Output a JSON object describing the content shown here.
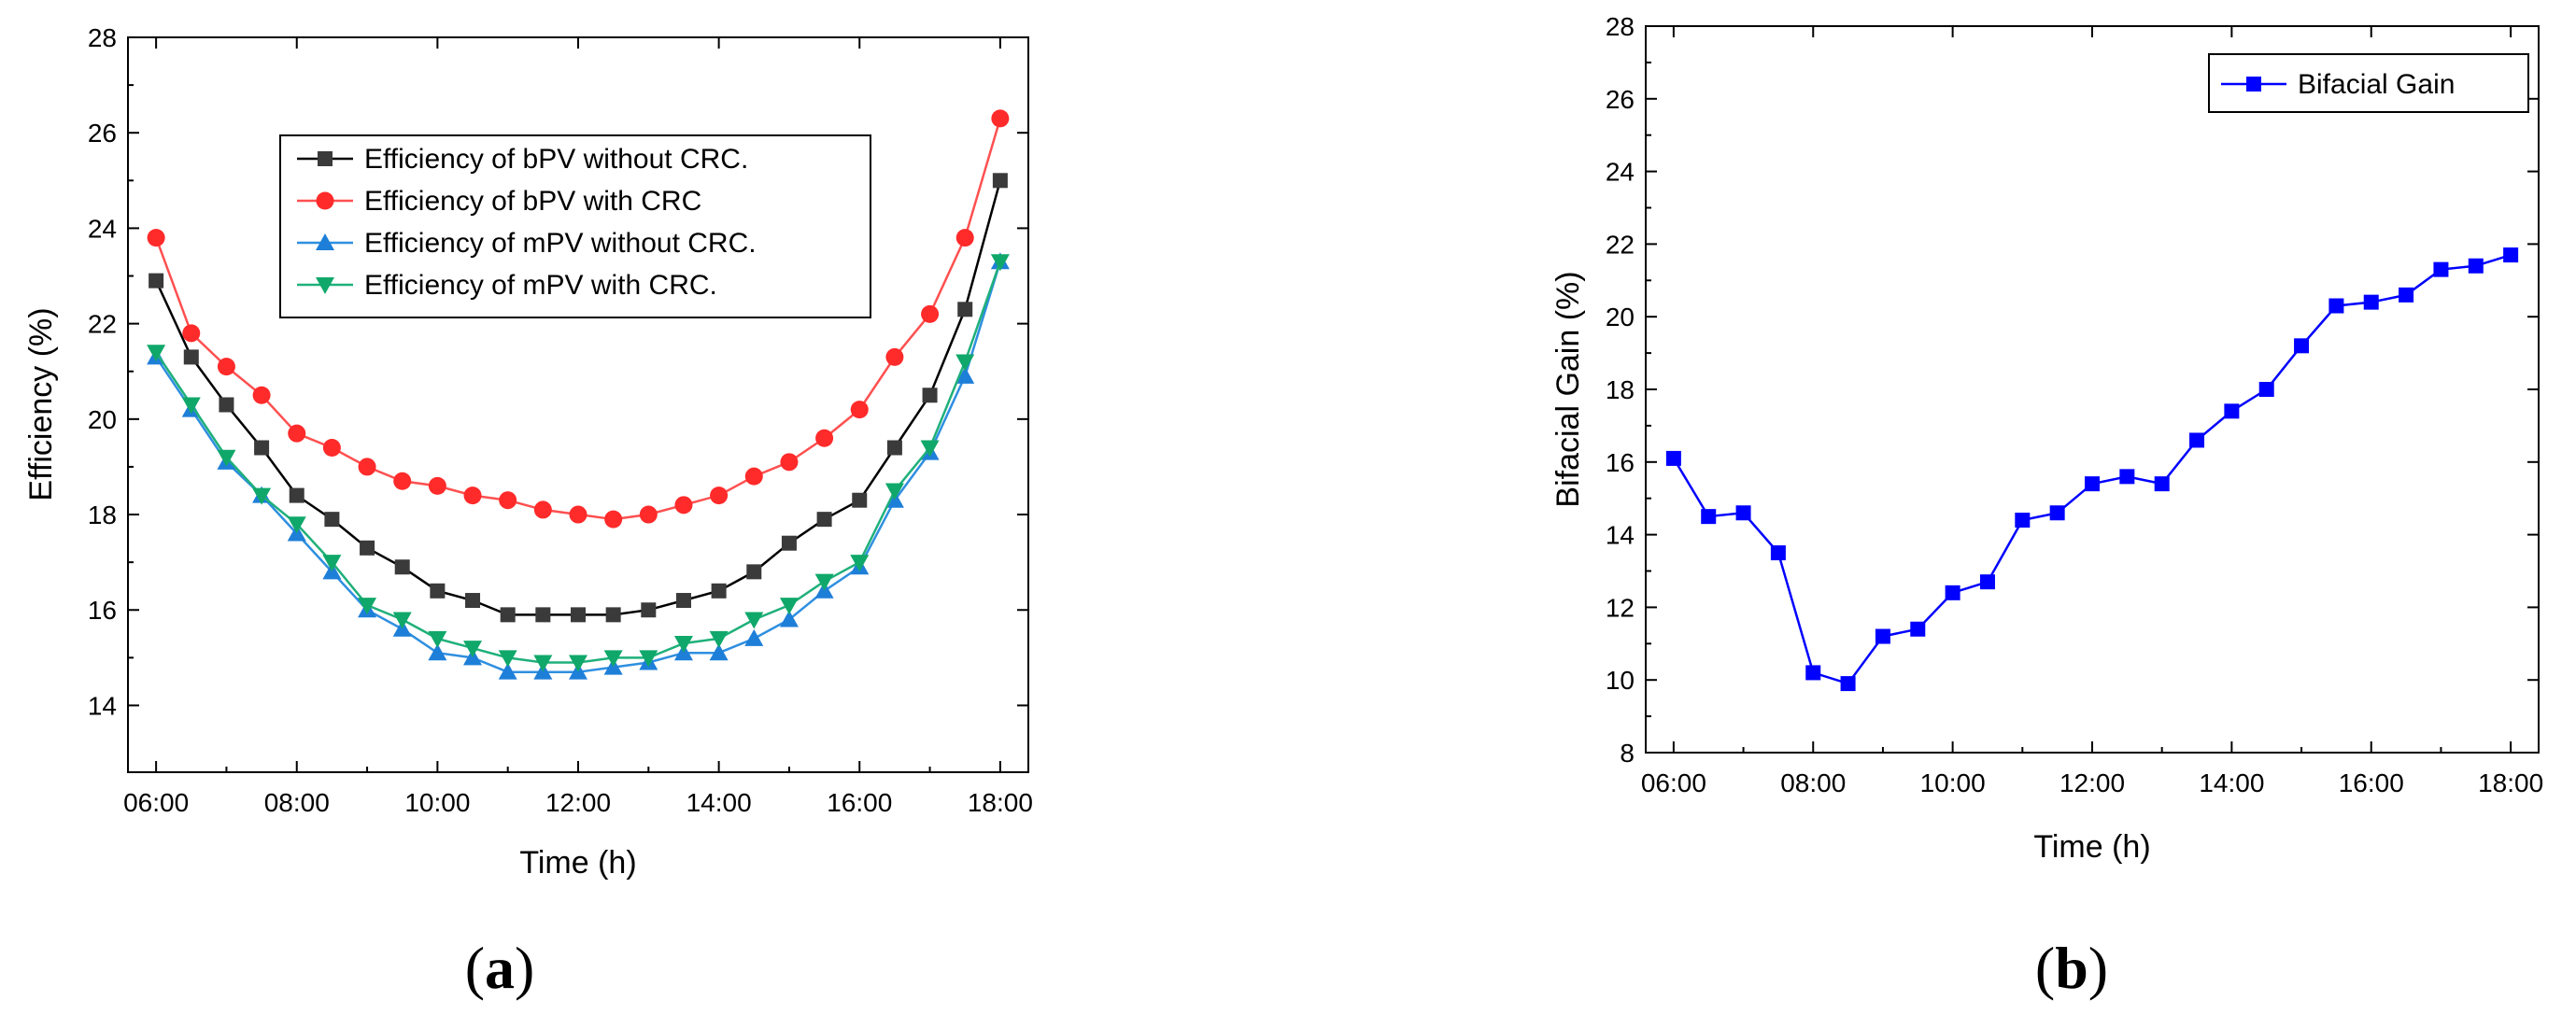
{
  "chart_data": [
    {
      "type": "line",
      "panel_label": {
        "open": "(",
        "letter": "a",
        "close": ")"
      },
      "xlabel": "Time (h)",
      "ylabel": "Efficiency (%)",
      "xlim": [
        5.6,
        18.4
      ],
      "ylim": [
        12.6,
        28
      ],
      "xticks": [
        6,
        8,
        10,
        12,
        14,
        16,
        18
      ],
      "xtick_labels": [
        "06:00",
        "08:00",
        "10:00",
        "12:00",
        "14:00",
        "16:00",
        "18:00"
      ],
      "yticks": [
        14,
        16,
        18,
        20,
        22,
        24,
        26,
        28
      ],
      "ytick_labels": [
        "14",
        "16",
        "18",
        "20",
        "22",
        "24",
        "26",
        "28"
      ],
      "legend_position": "top-center",
      "x": [
        6,
        6.5,
        7,
        7.5,
        8,
        8.5,
        9,
        9.5,
        10,
        10.5,
        11,
        11.5,
        12,
        12.5,
        13,
        13.5,
        14,
        14.5,
        15,
        15.5,
        16,
        16.5,
        17,
        17.5,
        18
      ],
      "series": [
        {
          "name": "Efficiency of bPV without CRC.",
          "color": "#000000",
          "marker_color": "#3a3a3a",
          "marker": "square",
          "values": [
            22.9,
            21.3,
            20.3,
            19.4,
            18.4,
            17.9,
            17.3,
            16.9,
            16.4,
            16.2,
            15.9,
            15.9,
            15.9,
            15.9,
            16.0,
            16.2,
            16.4,
            16.8,
            17.4,
            17.9,
            18.3,
            19.4,
            20.5,
            22.3,
            25.0
          ]
        },
        {
          "name": "Efficiency of bPV with CRC",
          "color": "#ff5050",
          "marker_color": "#ff2a2a",
          "marker": "circle",
          "values": [
            23.8,
            21.8,
            21.1,
            20.5,
            19.7,
            19.4,
            19.0,
            18.7,
            18.6,
            18.4,
            18.3,
            18.1,
            18.0,
            17.9,
            18.0,
            18.2,
            18.4,
            18.8,
            19.1,
            19.6,
            20.2,
            21.3,
            22.2,
            23.8,
            26.3
          ]
        },
        {
          "name": "Efficiency of mPV without CRC.",
          "color": "#2f8fe0",
          "marker_color": "#1e7fd8",
          "marker": "triangle-up",
          "values": [
            21.3,
            20.2,
            19.1,
            18.4,
            17.6,
            16.8,
            16.0,
            15.6,
            15.1,
            15.0,
            14.7,
            14.7,
            14.7,
            14.8,
            14.9,
            15.1,
            15.1,
            15.4,
            15.8,
            16.4,
            16.9,
            18.3,
            19.3,
            20.9,
            23.3
          ]
        },
        {
          "name": "Efficiency of mPV with CRC.",
          "color": "#1fb07a",
          "marker_color": "#10a86a",
          "marker": "triangle-down",
          "values": [
            21.4,
            20.3,
            19.2,
            18.4,
            17.8,
            17.0,
            16.1,
            15.8,
            15.4,
            15.2,
            15.0,
            14.9,
            14.9,
            15.0,
            15.0,
            15.3,
            15.4,
            15.8,
            16.1,
            16.6,
            17.0,
            18.5,
            19.4,
            21.2,
            23.3
          ]
        }
      ]
    },
    {
      "type": "line",
      "panel_label": {
        "open": "(",
        "letter": "b",
        "close": ")"
      },
      "xlabel": "Time (h)",
      "ylabel": "Bifacial Gain (%)",
      "xlim": [
        5.6,
        18.4
      ],
      "ylim": [
        8,
        28
      ],
      "xticks": [
        6,
        8,
        10,
        12,
        14,
        16,
        18
      ],
      "xtick_labels": [
        "06:00",
        "08:00",
        "10:00",
        "12:00",
        "14:00",
        "16:00",
        "18:00"
      ],
      "yticks": [
        8,
        10,
        12,
        14,
        16,
        18,
        20,
        22,
        24,
        26,
        28
      ],
      "ytick_labels": [
        "8",
        "10",
        "12",
        "14",
        "16",
        "18",
        "20",
        "22",
        "24",
        "26",
        "28"
      ],
      "legend_position": "top-right",
      "x": [
        6,
        6.5,
        7,
        7.5,
        8,
        8.5,
        9,
        9.5,
        10,
        10.5,
        11,
        11.5,
        12,
        12.5,
        13,
        13.5,
        14,
        14.5,
        15,
        15.5,
        16,
        16.5,
        17,
        17.5,
        18
      ],
      "series": [
        {
          "name": "Bifacial Gain",
          "color": "#0000ff",
          "marker_color": "#0000ff",
          "marker": "square",
          "values": [
            16.1,
            14.5,
            14.6,
            13.5,
            10.2,
            9.9,
            11.2,
            11.4,
            12.4,
            12.7,
            14.4,
            14.6,
            15.4,
            15.6,
            15.4,
            16.6,
            17.4,
            18.0,
            19.2,
            20.3,
            20.4,
            20.6,
            21.3,
            21.4,
            21.7
          ]
        }
      ]
    }
  ]
}
